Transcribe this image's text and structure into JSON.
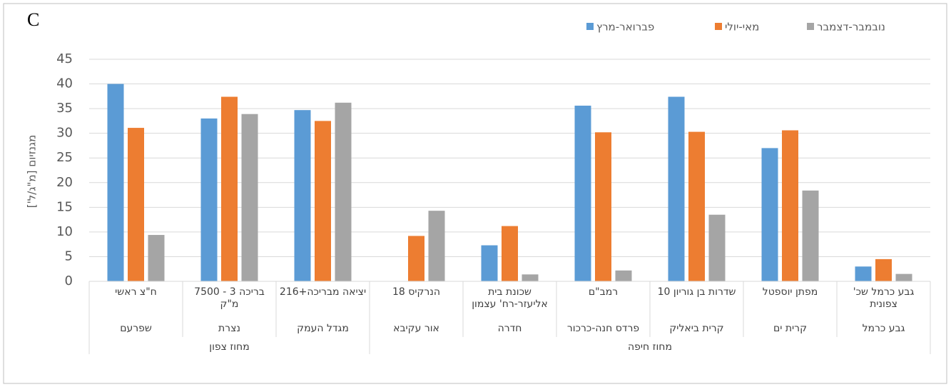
{
  "chart_data": {
    "type": "bar",
    "panel_label": "C",
    "y_label": "מגנזיום [מ\"ג/ל']",
    "categories": [
      "ח\"צ ראשי",
      "בריכה 3 - 7500 מ\"ק",
      "יציאה מבריכה+216",
      "הנרקיס 18",
      "שכונת בית אליעזר-רח' עצמון",
      "רמב\"ם",
      "שדרות בן גוריון 10",
      "מפתן יוספטל",
      "גבע כרמל שכ' צפונית"
    ],
    "cities": [
      "שפרעם",
      "נצרת",
      "מגדל העמק",
      "אור עקיבא",
      "חדרה",
      "פרדס חנה-כרכור",
      "קרית ביאליק",
      "קרית ים",
      "גבע כרמל"
    ],
    "districts": [
      {
        "name": "מחוז צפון",
        "size": 3
      },
      {
        "name": "מחוז חיפה",
        "size": 6
      }
    ],
    "series": [
      {
        "name": "פברואר-מרץ",
        "color": "#5b9bd5",
        "values": [
          40,
          33,
          34.7,
          null,
          7.3,
          35.6,
          37.4,
          27,
          3
        ]
      },
      {
        "name": "מאי-יולי",
        "color": "#ed7d31",
        "values": [
          31.1,
          37.4,
          32.5,
          9.2,
          11.2,
          30.2,
          30.3,
          30.6,
          4.5
        ]
      },
      {
        "name": "נובמבר-דצמבר",
        "color": "#a5a5a5",
        "values": [
          9.4,
          33.9,
          36.2,
          14.3,
          1.4,
          2.2,
          13.5,
          18.4,
          1.5
        ]
      }
    ],
    "ylim": [
      0,
      45
    ],
    "yticks": [
      0,
      5,
      10,
      15,
      20,
      25,
      30,
      35,
      40,
      45
    ],
    "grid": true
  }
}
